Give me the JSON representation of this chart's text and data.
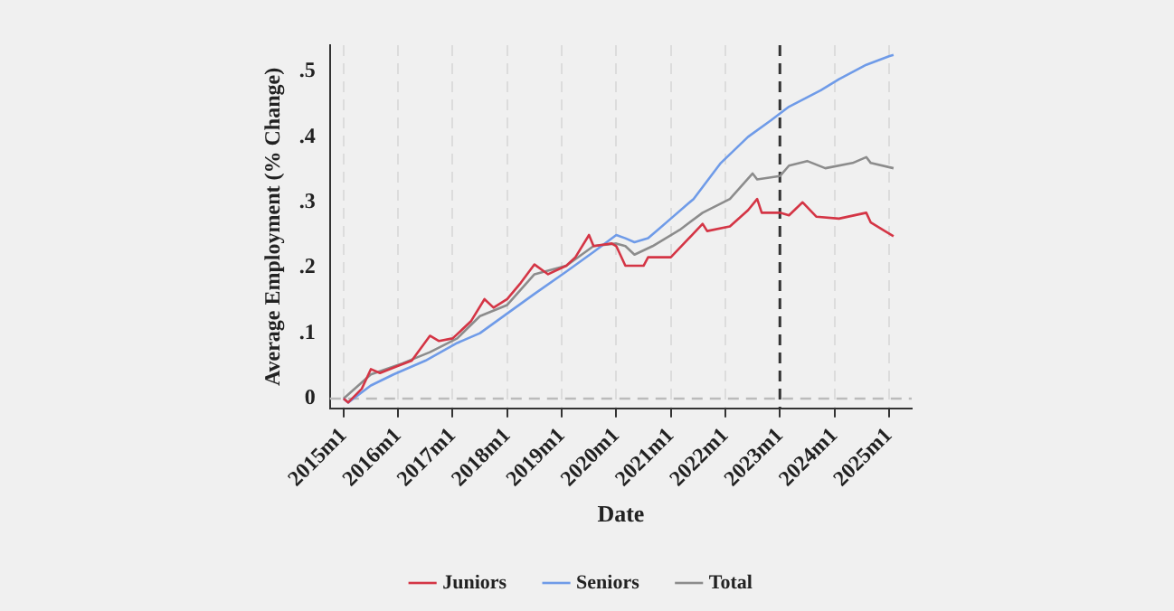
{
  "chart_data": {
    "type": "line",
    "xlabel": "Date",
    "ylabel": "Average Employment (% Change)",
    "xlim": [
      "2014-10",
      "2025-06"
    ],
    "ylim": [
      -0.015,
      0.54
    ],
    "xticks": [
      {
        "value": "2015-01",
        "label": "2015m1"
      },
      {
        "value": "2016-01",
        "label": "2016m1"
      },
      {
        "value": "2017-01",
        "label": "2017m1"
      },
      {
        "value": "2018-01",
        "label": "2018m1"
      },
      {
        "value": "2019-01",
        "label": "2019m1"
      },
      {
        "value": "2020-01",
        "label": "2020m1"
      },
      {
        "value": "2021-01",
        "label": "2021m1"
      },
      {
        "value": "2022-01",
        "label": "2022m1"
      },
      {
        "value": "2023-01",
        "label": "2023m1"
      },
      {
        "value": "2024-01",
        "label": "2024m1"
      },
      {
        "value": "2025-01",
        "label": "2025m1"
      }
    ],
    "yticks": [
      {
        "value": 0,
        "label": "0"
      },
      {
        "value": 0.1,
        "label": ".1"
      },
      {
        "value": 0.2,
        "label": ".2"
      },
      {
        "value": 0.3,
        "label": ".3"
      },
      {
        "value": 0.4,
        "label": ".4"
      },
      {
        "value": 0.5,
        "label": ".5"
      }
    ],
    "grid": "x",
    "legend": "bottom",
    "marker": "none",
    "line_style": "solid",
    "ref_lines": [
      {
        "axis": "y",
        "value": 0,
        "color": "#bbbbbb",
        "line_style": "dashed"
      },
      {
        "axis": "x",
        "value": "2023-01",
        "color": "#333333",
        "line_style": "dashed"
      }
    ],
    "series": [
      {
        "name": "Juniors",
        "color": "#d43545",
        "x": [
          "2015-01",
          "2015-02",
          "2015-05",
          "2015-07",
          "2015-09",
          "2016-01",
          "2016-04",
          "2016-08",
          "2016-10",
          "2017-01",
          "2017-05",
          "2017-08",
          "2017-10",
          "2018-01",
          "2018-04",
          "2018-07",
          "2018-10",
          "2019-02",
          "2019-04",
          "2019-07",
          "2019-08",
          "2019-12",
          "2020-01",
          "2020-03",
          "2020-07",
          "2020-08",
          "2021-01",
          "2021-08",
          "2021-09",
          "2022-02",
          "2022-06",
          "2022-08",
          "2022-09",
          "2023-01",
          "2023-03",
          "2023-06",
          "2023-09",
          "2024-02",
          "2024-08",
          "2024-09",
          "2025-02"
        ],
        "values": [
          0,
          -0.006,
          0.015,
          0.045,
          0.039,
          0.05,
          0.058,
          0.096,
          0.088,
          0.092,
          0.118,
          0.152,
          0.139,
          0.152,
          0.177,
          0.205,
          0.19,
          0.203,
          0.216,
          0.25,
          0.233,
          0.237,
          0.233,
          0.203,
          0.203,
          0.216,
          0.216,
          0.267,
          0.256,
          0.263,
          0.288,
          0.305,
          0.284,
          0.284,
          0.28,
          0.3,
          0.278,
          0.275,
          0.284,
          0.269,
          0.248
        ]
      },
      {
        "name": "Seniors",
        "color": "#6f9be8",
        "x": [
          "2015-01",
          "2015-02",
          "2015-07",
          "2015-12",
          "2016-07",
          "2017-02",
          "2017-07",
          "2018-01",
          "2018-07",
          "2019-02",
          "2019-08",
          "2020-01",
          "2020-03",
          "2020-05",
          "2020-08",
          "2021-01",
          "2021-06",
          "2021-12",
          "2022-06",
          "2022-11",
          "2023-03",
          "2023-10",
          "2024-02",
          "2024-08",
          "2025-01",
          "2025-02"
        ],
        "values": [
          0,
          -0.006,
          0.02,
          0.037,
          0.058,
          0.085,
          0.1,
          0.13,
          0.16,
          0.194,
          0.224,
          0.25,
          0.245,
          0.239,
          0.245,
          0.275,
          0.305,
          0.36,
          0.4,
          0.425,
          0.446,
          0.471,
          0.488,
          0.51,
          0.523,
          0.525
        ]
      },
      {
        "name": "Total",
        "color": "#8c8c8c",
        "x": [
          "2015-01",
          "2015-07",
          "2016-02",
          "2016-08",
          "2017-02",
          "2017-07",
          "2018-01",
          "2018-07",
          "2019-02",
          "2019-08",
          "2020-01",
          "2020-03",
          "2020-05",
          "2020-09",
          "2021-03",
          "2021-08",
          "2022-02",
          "2022-07",
          "2022-08",
          "2023-01",
          "2023-03",
          "2023-07",
          "2023-11",
          "2024-05",
          "2024-08",
          "2024-09",
          "2025-02"
        ],
        "values": [
          0,
          0.037,
          0.054,
          0.071,
          0.092,
          0.126,
          0.143,
          0.19,
          0.203,
          0.233,
          0.237,
          0.233,
          0.22,
          0.233,
          0.258,
          0.284,
          0.305,
          0.344,
          0.335,
          0.34,
          0.356,
          0.363,
          0.352,
          0.36,
          0.369,
          0.36,
          0.352
        ]
      }
    ]
  }
}
